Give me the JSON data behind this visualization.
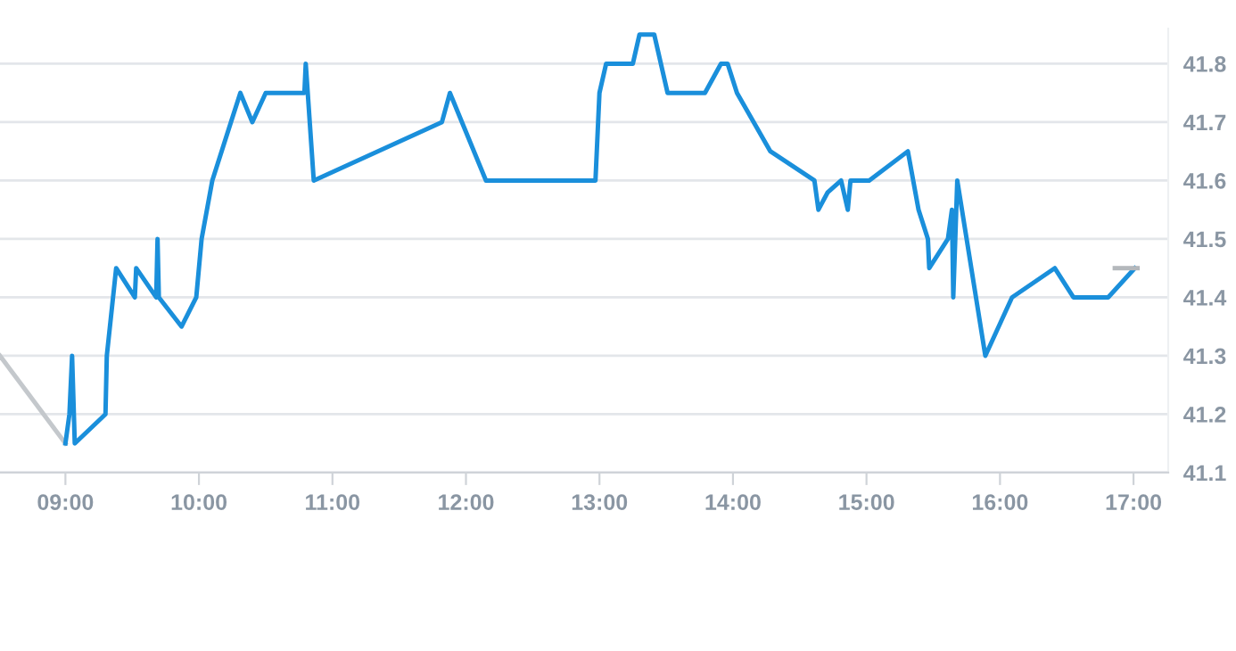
{
  "chart_data": {
    "type": "line",
    "series": [
      {
        "color": "#c4c8cc",
        "x": [
          8.51,
          9.0
        ],
        "values": [
          41.3,
          41.15
        ]
      },
      {
        "color": "#1a8fdb",
        "x": [
          9.0,
          9.03,
          9.05,
          9.07,
          9.3,
          9.31,
          9.38,
          9.52,
          9.53,
          9.68,
          9.69,
          9.7,
          9.87,
          9.98,
          10.02,
          10.1,
          10.31,
          10.4,
          10.5,
          10.79,
          10.8,
          10.86,
          11.82,
          11.88,
          11.97,
          12.15,
          12.97,
          13.0,
          13.05,
          13.25,
          13.3,
          13.41,
          13.51,
          13.79,
          13.91,
          13.96,
          14.03,
          14.28,
          14.61,
          14.64,
          14.71,
          14.81,
          14.86,
          14.88,
          15.02,
          15.31,
          15.39,
          15.46,
          15.47,
          15.61,
          15.64,
          15.65,
          15.68,
          15.89,
          16.09,
          16.41,
          16.55,
          16.81,
          17.01
        ],
        "values": [
          41.15,
          41.2,
          41.3,
          41.15,
          41.2,
          41.3,
          41.45,
          41.4,
          41.45,
          41.4,
          41.5,
          41.4,
          41.35,
          41.4,
          41.5,
          41.6,
          41.75,
          41.7,
          41.75,
          41.75,
          41.8,
          41.6,
          41.7,
          41.75,
          41.7,
          41.6,
          41.6,
          41.75,
          41.8,
          41.8,
          41.85,
          41.85,
          41.75,
          41.75,
          41.8,
          41.8,
          41.75,
          41.65,
          41.6,
          41.55,
          41.58,
          41.6,
          41.55,
          41.6,
          41.6,
          41.65,
          41.55,
          41.5,
          41.45,
          41.5,
          41.55,
          41.4,
          41.6,
          41.3,
          41.4,
          41.45,
          41.4,
          41.4,
          41.45
        ]
      },
      {
        "color": "#b4b8bc",
        "x": [
          16.86,
          17.03
        ],
        "values": [
          41.45,
          41.45
        ]
      }
    ],
    "xlim": [
      8.51,
      17.26
    ],
    "xticks": [
      {
        "value": 9,
        "label": "09:00"
      },
      {
        "value": 10,
        "label": "10:00"
      },
      {
        "value": 11,
        "label": "11:00"
      },
      {
        "value": 12,
        "label": "12:00"
      },
      {
        "value": 13,
        "label": "13:00"
      },
      {
        "value": 14,
        "label": "14:00"
      },
      {
        "value": 15,
        "label": "15:00"
      },
      {
        "value": 16,
        "label": "16:00"
      },
      {
        "value": 17,
        "label": "17:00"
      }
    ],
    "ylim": [
      41.1,
      41.86
    ],
    "yticks": [
      41.1,
      41.2,
      41.3,
      41.4,
      41.5,
      41.6,
      41.7,
      41.8
    ],
    "grid": "y",
    "legend": false,
    "marker": "none",
    "line_style": "solid"
  }
}
